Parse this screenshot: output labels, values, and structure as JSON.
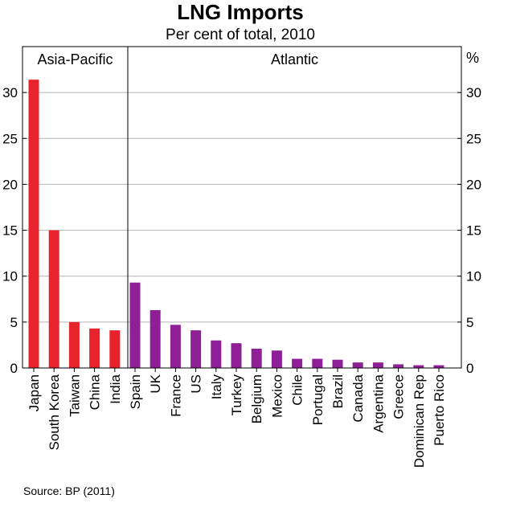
{
  "chart_data": {
    "type": "bar",
    "title": "LNG Imports",
    "subtitle": "Per cent of total, 2010",
    "ylabel": "%",
    "ylim": [
      0,
      35
    ],
    "yticks": [
      0,
      5,
      10,
      15,
      20,
      25,
      30
    ],
    "grid": true,
    "source": "Source: BP (2011)",
    "colors": {
      "asia": "#e8232b",
      "atlantic": "#8e1f96"
    },
    "groups": [
      {
        "name": "Asia-Pacific",
        "color_key": "asia",
        "categories": [
          "Japan",
          "South Korea",
          "Taiwan",
          "China",
          "India"
        ],
        "values": [
          31.4,
          15.0,
          5.0,
          4.3,
          4.1
        ]
      },
      {
        "name": "Atlantic",
        "color_key": "atlantic",
        "categories": [
          "Spain",
          "UK",
          "France",
          "US",
          "Italy",
          "Turkey",
          "Belgium",
          "Mexico",
          "Chile",
          "Portugal",
          "Brazil",
          "Canada",
          "Argentina",
          "Greece",
          "Dominican Rep",
          "Puerto Rico"
        ],
        "values": [
          9.3,
          6.3,
          4.7,
          4.1,
          3.0,
          2.7,
          2.1,
          1.9,
          1.0,
          1.0,
          0.9,
          0.6,
          0.6,
          0.4,
          0.3,
          0.3
        ]
      }
    ]
  }
}
